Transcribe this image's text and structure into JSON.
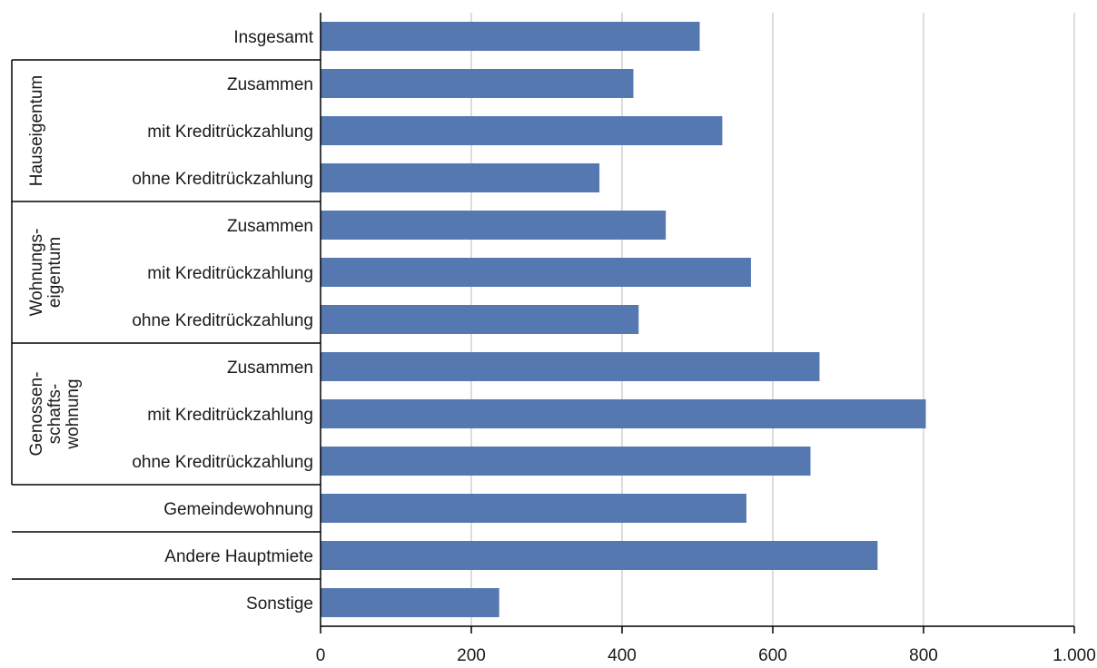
{
  "chart_data": {
    "type": "bar",
    "orientation": "horizontal",
    "categories": [
      "Insgesamt",
      "Zusammen",
      "mit Kreditrückzahlung",
      "ohne Kreditrückzahlung",
      "Zusammen",
      "mit Kreditrückzahlung",
      "ohne Kreditrückzahlung",
      "Zusammen",
      "mit Kreditrückzahlung",
      "ohne Kreditrückzahlung",
      "Gemeindewohnung",
      "Andere Hauptmiete",
      "Sonstige"
    ],
    "values": [
      503,
      415,
      533,
      370,
      458,
      571,
      422,
      662,
      803,
      650,
      565,
      739,
      237
    ],
    "groups": [
      {
        "label_lines": [
          "Hauseigentum"
        ],
        "start": 1,
        "end": 3
      },
      {
        "label_lines": [
          "Wohnungs-",
          "eigentum"
        ],
        "start": 4,
        "end": 6
      },
      {
        "label_lines": [
          "Genossen-",
          "schafts-",
          "wohnung"
        ],
        "start": 7,
        "end": 9
      }
    ],
    "xlim": [
      0,
      1000
    ],
    "xticks": [
      0,
      200,
      400,
      600,
      800,
      1000
    ],
    "xtick_labels": [
      "0",
      "200",
      "400",
      "600",
      "800",
      "1.000"
    ],
    "grid": "vertical",
    "bar_color": "#5578b0",
    "grid_color": "#d0d0d0"
  }
}
